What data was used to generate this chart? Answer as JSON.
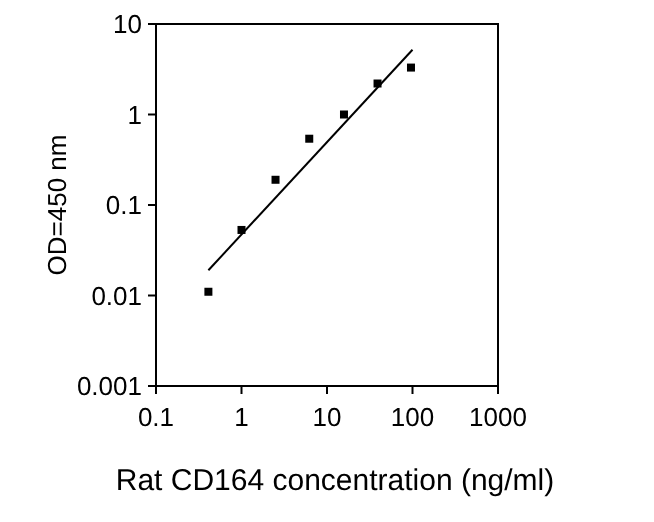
{
  "chart_data": {
    "type": "scatter",
    "xlabel": "Rat CD164 concentration (ng/ml)",
    "ylabel": "OD=450 nm",
    "log": "xy",
    "xlim": [
      0.1,
      1000
    ],
    "xticks": [
      0.1,
      1,
      10,
      100,
      1000
    ],
    "ylim": [
      0.001,
      10
    ],
    "yticks": [
      0.001,
      0.01,
      0.1,
      1,
      10
    ],
    "grid": false,
    "series": [
      {
        "marker": "square",
        "color": "#000000",
        "x": [
          0.41,
          1,
          2.5,
          6.2,
          15.8,
          39,
          96
        ],
        "values": [
          0.011,
          0.053,
          0.19,
          0.54,
          1.0,
          2.2,
          3.3
        ]
      },
      {
        "type": "line",
        "color": "#000000",
        "x": [
          0.41,
          100
        ],
        "values": [
          0.019,
          5.2
        ]
      }
    ]
  }
}
